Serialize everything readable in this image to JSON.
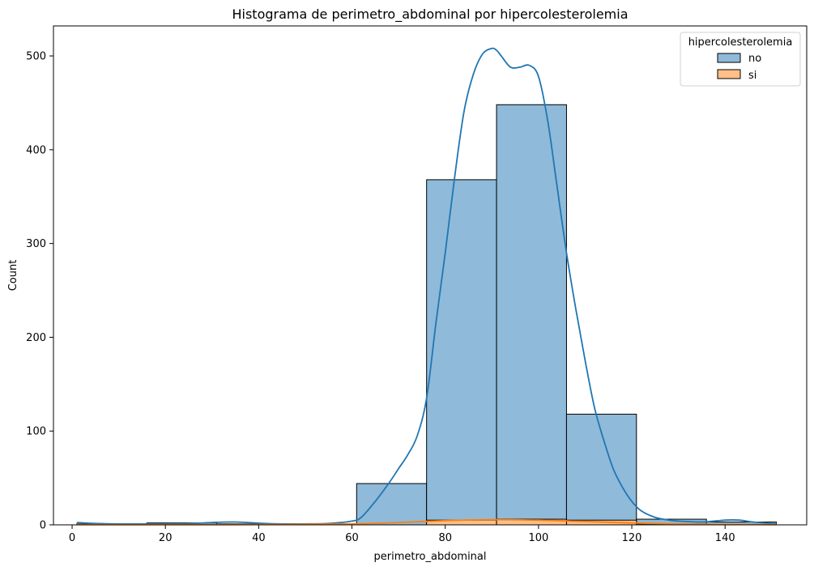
{
  "chart_data": {
    "type": "bar",
    "subtype": "histogram-with-kde",
    "title": "Histograma de perimetro_abdominal por hipercolesterolemia",
    "xlabel": "perimetro_abdominal",
    "ylabel": "Count",
    "xlim": [
      -4,
      157.5
    ],
    "ylim": [
      0,
      532
    ],
    "xticks": [
      0,
      20,
      40,
      60,
      80,
      100,
      120,
      140
    ],
    "yticks": [
      0,
      100,
      200,
      300,
      400,
      500
    ],
    "grid": false,
    "legend": {
      "title": "hipercolesterolemia",
      "placement": "top-right"
    },
    "bin_edges": [
      1,
      16,
      31,
      46,
      61,
      76,
      91,
      106,
      121,
      136,
      151
    ],
    "series": [
      {
        "name": "no",
        "color": "#1f77b4",
        "fill": "#8fbad9",
        "counts": [
          1,
          2,
          1,
          1,
          44,
          368,
          448,
          118,
          6,
          3
        ],
        "kde": {
          "x": [
            1,
            5,
            10,
            15,
            20,
            25,
            30,
            35,
            40,
            45,
            50,
            55,
            60,
            62,
            65,
            68,
            70,
            72,
            74,
            76,
            78,
            80,
            82,
            84,
            86,
            88,
            90,
            91,
            92,
            94,
            96,
            98,
            100,
            102,
            104,
            106,
            108,
            110,
            112,
            114,
            116,
            118,
            120,
            122,
            125,
            128,
            130,
            135,
            140,
            143,
            146,
            151
          ],
          "y": [
            2.5,
            1.5,
            1,
            1,
            1,
            1.2,
            2.5,
            3,
            1.8,
            1,
            1,
            1.5,
            4,
            8,
            25,
            45,
            60,
            75,
            95,
            135,
            215,
            290,
            370,
            440,
            480,
            502,
            508,
            506,
            500,
            488,
            488,
            490,
            478,
            430,
            360,
            290,
            230,
            175,
            125,
            90,
            60,
            40,
            25,
            15,
            8,
            5,
            4,
            3,
            5,
            5,
            3,
            1
          ]
        }
      },
      {
        "name": "si",
        "color": "#ff7f0e",
        "fill": "#ffbf86",
        "counts": [
          0,
          0,
          0,
          0,
          0,
          5,
          6,
          5,
          1,
          0
        ],
        "kde": {
          "x": [
            1,
            20,
            40,
            60,
            70,
            80,
            90,
            100,
            110,
            120,
            130,
            140,
            151
          ],
          "y": [
            0.2,
            0.2,
            0.3,
            1,
            2.5,
            4.5,
            5.5,
            5,
            3.5,
            2,
            1,
            0.5,
            0.2
          ]
        }
      }
    ]
  }
}
